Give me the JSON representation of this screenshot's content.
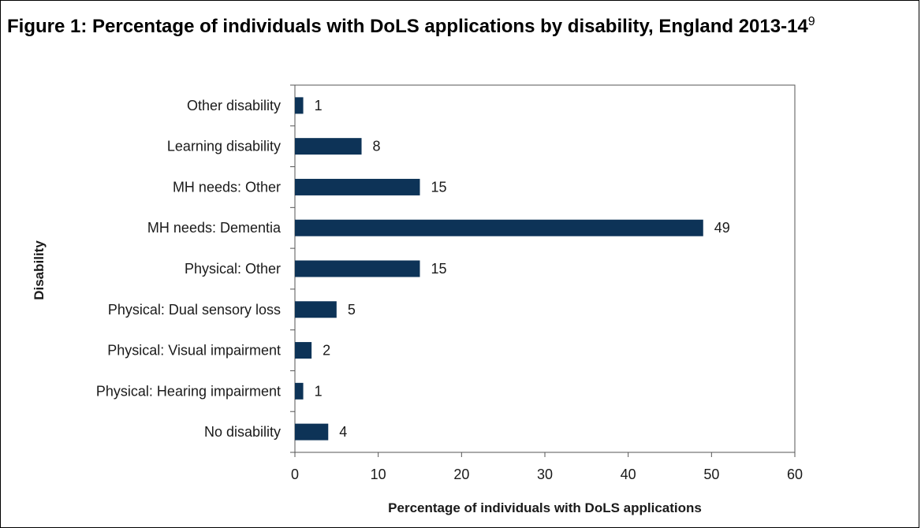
{
  "figure": {
    "title": "Figure 1: Percentage of individuals with DoLS applications by disability, England 2013-14",
    "footnote": "9"
  },
  "chart_data": {
    "type": "bar",
    "orientation": "horizontal",
    "categories": [
      "Other disability",
      "Learning disability",
      "MH needs: Other",
      "MH needs: Dementia",
      "Physical: Other",
      "Physical: Dual sensory loss",
      "Physical: Visual impairment",
      "Physical: Hearing impairment",
      "No disability"
    ],
    "values": [
      1,
      8,
      15,
      49,
      15,
      5,
      2,
      1,
      4
    ],
    "xlabel": "Percentage of individuals with DoLS applications",
    "ylabel": "Disability",
    "xlim": [
      0,
      60
    ],
    "xticks": [
      0,
      10,
      20,
      30,
      40,
      50,
      60
    ],
    "grid": false,
    "bar_color": "#0d3357"
  }
}
